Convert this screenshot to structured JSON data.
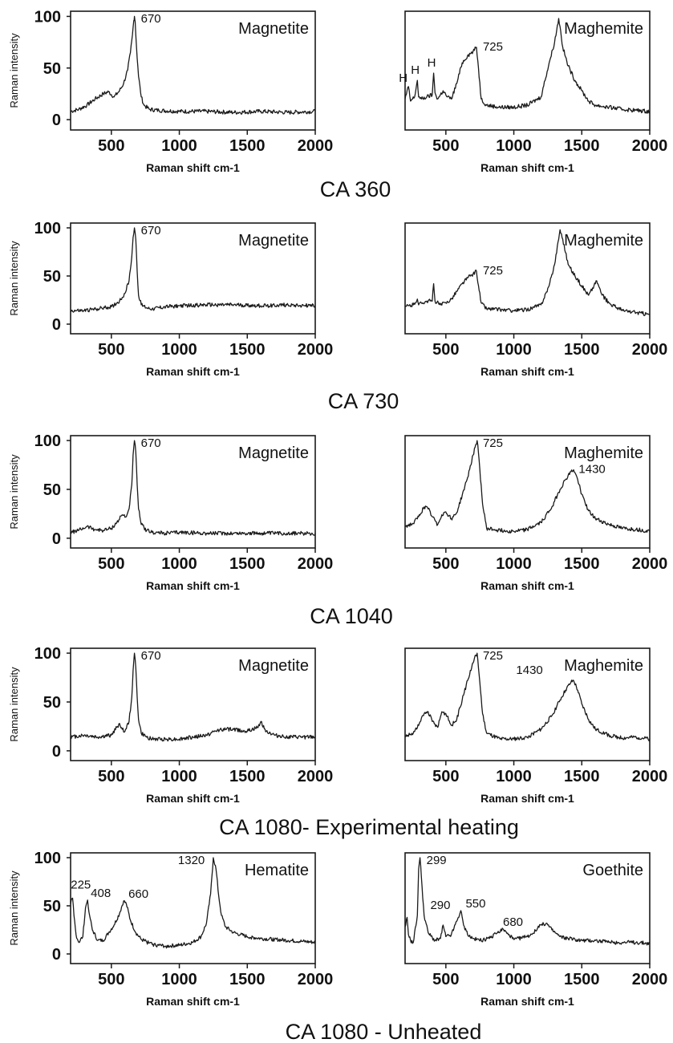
{
  "groups": [
    {
      "caption": "CA 360",
      "charts": [
        {
          "type": "line",
          "mineral": "Magnetite",
          "xlabel": "Raman shift cm-1",
          "ylabel": "Raman intensity",
          "xlim": [
            200,
            2000
          ],
          "ylim": [
            -10,
            105
          ],
          "xticks": [
            500,
            1000,
            1500,
            2000
          ],
          "yticks": [
            0,
            50,
            100
          ],
          "x": [
            200,
            260,
            320,
            380,
            440,
            480,
            520,
            560,
            590,
            620,
            640,
            655,
            665,
            670,
            675,
            685,
            700,
            720,
            740,
            780,
            850,
            1000,
            1200,
            1400,
            1600,
            1800,
            2000
          ],
          "y": [
            8,
            10,
            14,
            20,
            25,
            27,
            22,
            28,
            35,
            48,
            65,
            82,
            96,
            100,
            95,
            70,
            42,
            22,
            14,
            10,
            9,
            8,
            8,
            7,
            8,
            7,
            8
          ],
          "annotations": [
            {
              "text": "670",
              "x": 670,
              "y": 100
            }
          ]
        },
        {
          "type": "line",
          "mineral": "Maghemite",
          "xlabel": "Raman shift cm-1",
          "ylabel": "",
          "xlim": [
            200,
            2000
          ],
          "ylim": [
            -10,
            105
          ],
          "xticks": [
            500,
            1000,
            1500,
            2000
          ],
          "yticks": [
            0,
            50,
            100
          ],
          "x": [
            200,
            225,
            240,
            270,
            290,
            300,
            320,
            360,
            400,
            410,
            420,
            440,
            480,
            510,
            540,
            580,
            620,
            660,
            700,
            725,
            740,
            760,
            800,
            900,
            1000,
            1100,
            1200,
            1260,
            1300,
            1330,
            1340,
            1360,
            1400,
            1450,
            1500,
            1550,
            1600,
            1700,
            1800,
            1900,
            2000
          ],
          "y": [
            20,
            32,
            18,
            22,
            38,
            22,
            20,
            22,
            24,
            45,
            26,
            20,
            28,
            22,
            20,
            35,
            55,
            62,
            66,
            70,
            50,
            20,
            14,
            12,
            12,
            14,
            22,
            55,
            75,
            98,
            90,
            70,
            52,
            38,
            28,
            18,
            14,
            12,
            10,
            9,
            8
          ],
          "annotations": [
            {
              "text": "725",
              "x": 725,
              "y": 70
            },
            {
              "text": "H",
              "x": 225,
              "y": 32
            },
            {
              "text": "H",
              "x": 290,
              "y": 38
            },
            {
              "text": "H",
              "x": 410,
              "y": 45
            }
          ]
        }
      ]
    },
    {
      "caption": "CA 730",
      "charts": [
        {
          "type": "line",
          "mineral": "Magnetite",
          "xlabel": "Raman shift cm-1",
          "ylabel": "Raman intensity",
          "xlim": [
            200,
            2000
          ],
          "ylim": [
            -10,
            105
          ],
          "xticks": [
            500,
            1000,
            1500,
            2000
          ],
          "yticks": [
            0,
            50,
            100
          ],
          "x": [
            200,
            300,
            400,
            500,
            560,
            600,
            630,
            650,
            660,
            670,
            680,
            690,
            700,
            720,
            760,
            800,
            900,
            1000,
            1200,
            1400,
            1600,
            1800,
            2000
          ],
          "y": [
            14,
            14,
            16,
            18,
            24,
            32,
            45,
            70,
            90,
            100,
            88,
            55,
            30,
            20,
            17,
            16,
            18,
            19,
            20,
            20,
            19,
            20,
            19
          ],
          "annotations": [
            {
              "text": "670",
              "x": 670,
              "y": 100
            }
          ]
        },
        {
          "type": "line",
          "mineral": "Maghemite",
          "xlabel": "Raman shift cm-1",
          "ylabel": "",
          "xlim": [
            200,
            2000
          ],
          "ylim": [
            -10,
            105
          ],
          "xticks": [
            500,
            1000,
            1500,
            2000
          ],
          "yticks": [
            0,
            50,
            100
          ],
          "x": [
            200,
            260,
            290,
            300,
            320,
            360,
            400,
            410,
            420,
            460,
            500,
            540,
            580,
            620,
            660,
            700,
            725,
            740,
            760,
            800,
            900,
            1000,
            1100,
            1200,
            1260,
            1300,
            1340,
            1360,
            1400,
            1450,
            1500,
            1550,
            1590,
            1610,
            1650,
            1700,
            1800,
            1900,
            2000
          ],
          "y": [
            18,
            20,
            26,
            20,
            22,
            24,
            24,
            42,
            24,
            20,
            22,
            26,
            34,
            42,
            48,
            52,
            55,
            40,
            22,
            16,
            15,
            14,
            15,
            20,
            40,
            62,
            98,
            88,
            62,
            50,
            40,
            30,
            40,
            45,
            30,
            22,
            14,
            12,
            10
          ],
          "annotations": [
            {
              "text": "725",
              "x": 725,
              "y": 55
            }
          ]
        }
      ]
    },
    {
      "caption": "CA 1040",
      "charts": [
        {
          "type": "line",
          "mineral": "Magnetite",
          "xlabel": "Raman shift cm-1",
          "ylabel": "Raman intensity",
          "xlim": [
            200,
            2000
          ],
          "ylim": [
            -10,
            105
          ],
          "xticks": [
            500,
            1000,
            1500,
            2000
          ],
          "yticks": [
            0,
            50,
            100
          ],
          "x": [
            200,
            260,
            320,
            380,
            440,
            500,
            540,
            580,
            610,
            630,
            650,
            660,
            670,
            680,
            690,
            700,
            720,
            760,
            800,
            900,
            1000,
            1200,
            1400,
            1600,
            1800,
            2000
          ],
          "y": [
            6,
            8,
            12,
            9,
            8,
            10,
            16,
            24,
            22,
            30,
            55,
            85,
            100,
            88,
            55,
            30,
            14,
            8,
            6,
            5,
            6,
            5,
            5,
            5,
            5,
            5
          ],
          "annotations": [
            {
              "text": "670",
              "x": 670,
              "y": 100
            }
          ]
        },
        {
          "type": "line",
          "mineral": "Maghemite",
          "xlabel": "Raman shift cm-1",
          "ylabel": "",
          "xlim": [
            200,
            2000
          ],
          "ylim": [
            -10,
            105
          ],
          "xticks": [
            500,
            1000,
            1500,
            2000
          ],
          "yticks": [
            0,
            50,
            100
          ],
          "x": [
            200,
            260,
            300,
            340,
            370,
            400,
            440,
            470,
            500,
            540,
            580,
            620,
            660,
            700,
            720,
            730,
            745,
            770,
            800,
            900,
            1000,
            1100,
            1200,
            1280,
            1340,
            1380,
            1420,
            1440,
            1470,
            1500,
            1550,
            1600,
            1700,
            1800,
            1900,
            2000
          ],
          "y": [
            12,
            15,
            22,
            32,
            30,
            22,
            14,
            24,
            27,
            20,
            26,
            44,
            62,
            85,
            96,
            100,
            80,
            35,
            10,
            8,
            7,
            9,
            16,
            32,
            50,
            60,
            68,
            70,
            60,
            45,
            28,
            20,
            14,
            10,
            9,
            7
          ],
          "annotations": [
            {
              "text": "725",
              "x": 725,
              "y": 100
            },
            {
              "text": "1430",
              "x": 1430,
              "y": 70
            }
          ]
        }
      ]
    },
    {
      "caption": "CA 1080- Experimental heating",
      "charts": [
        {
          "type": "line",
          "mineral": "Magnetite",
          "xlabel": "Raman shift cm-1",
          "ylabel": "Raman intensity",
          "xlim": [
            200,
            2000
          ],
          "ylim": [
            -10,
            105
          ],
          "xticks": [
            500,
            1000,
            1500,
            2000
          ],
          "yticks": [
            0,
            50,
            100
          ],
          "x": [
            200,
            300,
            400,
            500,
            540,
            560,
            580,
            600,
            630,
            650,
            660,
            670,
            680,
            690,
            700,
            720,
            760,
            800,
            1000,
            1200,
            1300,
            1400,
            1500,
            1580,
            1600,
            1640,
            1700,
            1800,
            2000
          ],
          "y": [
            14,
            16,
            14,
            16,
            24,
            28,
            22,
            20,
            30,
            55,
            82,
            100,
            85,
            55,
            32,
            18,
            14,
            12,
            12,
            16,
            22,
            22,
            20,
            24,
            30,
            20,
            16,
            14,
            14
          ],
          "annotations": [
            {
              "text": "670",
              "x": 670,
              "y": 100
            }
          ]
        },
        {
          "type": "line",
          "mineral": "Maghemite",
          "xlabel": "Raman shift cm-1",
          "ylabel": "",
          "xlim": [
            200,
            2000
          ],
          "ylim": [
            -10,
            105
          ],
          "xticks": [
            500,
            1000,
            1500,
            2000
          ],
          "yticks": [
            0,
            50,
            100
          ],
          "x": [
            200,
            260,
            300,
            340,
            370,
            400,
            440,
            470,
            500,
            540,
            580,
            620,
            660,
            700,
            720,
            730,
            745,
            770,
            800,
            900,
            1000,
            1100,
            1200,
            1280,
            1340,
            1380,
            1420,
            1440,
            1470,
            1500,
            1550,
            1600,
            1700,
            1800,
            1900,
            2000
          ],
          "y": [
            15,
            18,
            26,
            38,
            40,
            30,
            24,
            40,
            38,
            26,
            32,
            52,
            72,
            90,
            98,
            100,
            78,
            38,
            18,
            12,
            12,
            14,
            22,
            36,
            52,
            62,
            70,
            72,
            62,
            48,
            32,
            22,
            16,
            13,
            14,
            12
          ],
          "annotations": [
            {
              "text": "725",
              "x": 725,
              "y": 100
            },
            {
              "text": "1430",
              "x": 1430,
              "y": 72
            }
          ]
        }
      ]
    },
    {
      "caption": "CA 1080 - Unheated",
      "charts": [
        {
          "type": "line",
          "mineral": "Hematite",
          "xlabel": "Raman shift cm-1",
          "ylabel": "Raman intensity",
          "xlim": [
            200,
            2000
          ],
          "ylim": [
            -10,
            105
          ],
          "xticks": [
            500,
            1000,
            1500,
            2000
          ],
          "yticks": [
            0,
            50,
            100
          ],
          "x": [
            200,
            215,
            225,
            240,
            260,
            290,
            310,
            325,
            340,
            360,
            400,
            440,
            480,
            520,
            560,
            590,
            610,
            640,
            680,
            720,
            800,
            900,
            1000,
            1100,
            1160,
            1200,
            1230,
            1250,
            1270,
            1290,
            1310,
            1340,
            1400,
            1450,
            1500,
            1600,
            1700,
            1800,
            1900,
            2000
          ],
          "y": [
            52,
            58,
            40,
            20,
            12,
            18,
            48,
            56,
            40,
            25,
            14,
            14,
            22,
            30,
            42,
            55,
            52,
            35,
            22,
            15,
            10,
            8,
            9,
            12,
            18,
            32,
            62,
            100,
            88,
            60,
            40,
            28,
            22,
            20,
            18,
            16,
            15,
            14,
            13,
            12
          ],
          "annotations": [
            {
              "text": "225",
              "x": 225,
              "y": 58
            },
            {
              "text": "408",
              "x": 325,
              "y": 56
            },
            {
              "text": "660",
              "x": 590,
              "y": 55
            },
            {
              "text": "1320",
              "x": 1250,
              "y": 100
            }
          ]
        },
        {
          "type": "line",
          "mineral": "Goethite",
          "xlabel": "Raman shift cm-1",
          "ylabel": "",
          "xlim": [
            200,
            2000
          ],
          "ylim": [
            -10,
            105
          ],
          "xticks": [
            500,
            1000,
            1500,
            2000
          ],
          "yticks": [
            0,
            50,
            100
          ],
          "x": [
            200,
            215,
            225,
            240,
            260,
            290,
            300,
            310,
            320,
            340,
            370,
            420,
            460,
            480,
            500,
            540,
            580,
            610,
            630,
            660,
            700,
            760,
            820,
            880,
            920,
            960,
            1000,
            1100,
            1160,
            1200,
            1240,
            1280,
            1340,
            1400,
            1500,
            1600,
            1700,
            1800,
            1900,
            2000
          ],
          "y": [
            28,
            38,
            20,
            14,
            12,
            40,
            88,
            100,
            80,
            40,
            22,
            14,
            16,
            30,
            18,
            20,
            34,
            45,
            30,
            20,
            16,
            14,
            16,
            22,
            26,
            20,
            15,
            18,
            24,
            30,
            32,
            25,
            18,
            16,
            14,
            14,
            12,
            12,
            12,
            11
          ],
          "annotations": [
            {
              "text": "299",
              "x": 310,
              "y": 100
            },
            {
              "text": "290",
              "x": 480,
              "y": 30
            },
            {
              "text": "550",
              "x": 610,
              "y": 45
            },
            {
              "text": "680",
              "x": 920,
              "y": 26
            }
          ]
        }
      ]
    }
  ]
}
